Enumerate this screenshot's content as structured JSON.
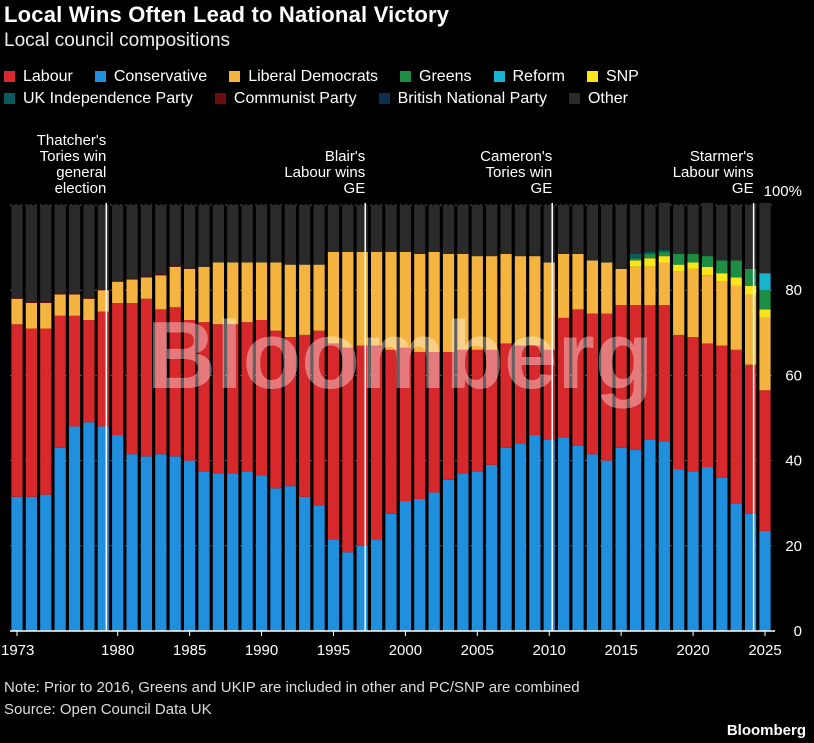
{
  "header": {
    "title": "Local Wins Often Lead to National Victory",
    "subtitle": "Local council compositions"
  },
  "footer": {
    "note": "Note: Prior to 2016, Greens and UKIP are included in other and PC/SNP are combined",
    "source": "Source: Open Council Data UK",
    "brand": "Bloomberg"
  },
  "watermark": "Bloomberg",
  "chart_data": {
    "type": "bar",
    "stacked": true,
    "xlim": [
      1973,
      2025
    ],
    "ylim": [
      0,
      100
    ],
    "y_ticks": [
      0,
      20,
      40,
      60,
      80,
      100
    ],
    "y_tick_labels": [
      "0",
      "20",
      "40",
      "60",
      "80",
      "100%"
    ],
    "x_ticks": [
      1973,
      1980,
      1985,
      1990,
      1995,
      2000,
      2005,
      2010,
      2015,
      2020,
      2025
    ],
    "x_tick_labels": [
      "1973",
      "1980",
      "1985",
      "1990",
      "1995",
      "2000",
      "2005",
      "2010",
      "2015",
      "2020",
      "2025"
    ],
    "grid": true,
    "legend_position": "top",
    "years": [
      1973,
      1974,
      1975,
      1976,
      1977,
      1978,
      1979,
      1980,
      1981,
      1982,
      1983,
      1984,
      1985,
      1986,
      1987,
      1988,
      1989,
      1990,
      1991,
      1992,
      1993,
      1994,
      1995,
      1996,
      1997,
      1998,
      1999,
      2000,
      2001,
      2002,
      2003,
      2004,
      2005,
      2006,
      2007,
      2008,
      2009,
      2010,
      2011,
      2012,
      2013,
      2014,
      2015,
      2016,
      2017,
      2018,
      2019,
      2020,
      2021,
      2022,
      2023,
      2024,
      2025
    ],
    "series": [
      {
        "name": "Conservative",
        "color": "#1f8fde",
        "values": [
          31.5,
          31.5,
          32,
          43,
          48,
          49,
          48,
          46,
          41.5,
          41,
          41.5,
          41,
          40,
          37.5,
          37,
          37,
          37.5,
          36.5,
          33.5,
          34,
          31.5,
          29.5,
          21.5,
          18.5,
          20,
          21.5,
          27.5,
          30.5,
          31,
          32.5,
          35.5,
          37,
          37.5,
          39,
          43,
          44,
          46,
          45,
          45.5,
          43.5,
          41.5,
          40,
          43,
          42.5,
          45,
          44.5,
          38,
          37.5,
          38.5,
          36,
          30,
          27.5,
          23.5
        ]
      },
      {
        "name": "Labour",
        "color": "#d7282b",
        "values": [
          40.5,
          39.5,
          39,
          31,
          26,
          24,
          27,
          31,
          35.5,
          37,
          34,
          35,
          33,
          35,
          35,
          35,
          35,
          36.5,
          37,
          35,
          38,
          41,
          46,
          48,
          47,
          45.5,
          38.5,
          36,
          34.5,
          33,
          30,
          29,
          28.5,
          27,
          24.5,
          23,
          21,
          21,
          28,
          32,
          33,
          34.5,
          33.5,
          34,
          31.5,
          32,
          31.5,
          31.5,
          29,
          31,
          36,
          35,
          33
        ]
      },
      {
        "name": "Liberal Democrats",
        "color": "#f5b43f",
        "values": [
          6,
          6,
          6,
          5,
          5,
          5,
          5,
          5,
          5.5,
          5,
          8,
          9.5,
          12,
          13,
          14.5,
          14.5,
          14,
          13.5,
          16,
          17,
          16.5,
          15.5,
          21.5,
          22.5,
          22,
          22,
          23,
          22.5,
          23,
          23.5,
          23,
          22.5,
          22,
          22,
          21,
          21,
          21,
          20.5,
          15,
          13,
          12.5,
          12,
          8.5,
          9,
          9,
          10,
          15,
          16,
          16,
          15,
          15,
          16.5,
          17
        ]
      },
      {
        "name": "SNP",
        "color": "#fde51b",
        "values": [
          0,
          0,
          0,
          0,
          0,
          0,
          0,
          0,
          0,
          0,
          0,
          0,
          0,
          0,
          0,
          0,
          0,
          0,
          0,
          0,
          0,
          0,
          0,
          0,
          0,
          0,
          0,
          0,
          0,
          0,
          0,
          0,
          0,
          0,
          0,
          0,
          0,
          0,
          0,
          0,
          0,
          0,
          0,
          1.5,
          2,
          1.5,
          1.5,
          1.5,
          2,
          2,
          2,
          2,
          2
        ]
      },
      {
        "name": "Greens",
        "color": "#1e8e45",
        "values": [
          0,
          0,
          0,
          0,
          0,
          0,
          0,
          0,
          0,
          0,
          0,
          0,
          0,
          0,
          0,
          0,
          0,
          0,
          0,
          0,
          0,
          0,
          0,
          0,
          0,
          0,
          0,
          0,
          0,
          0,
          0,
          0,
          0,
          0,
          0,
          0,
          0,
          0,
          0,
          0,
          0,
          0,
          0,
          0.5,
          1,
          1,
          2.5,
          2,
          2.5,
          3,
          4,
          4,
          4.5
        ]
      },
      {
        "name": "Reform",
        "color": "#17b4cf",
        "values": [
          0,
          0,
          0,
          0,
          0,
          0,
          0,
          0,
          0,
          0,
          0,
          0,
          0,
          0,
          0,
          0,
          0,
          0,
          0,
          0,
          0,
          0,
          0,
          0,
          0,
          0,
          0,
          0,
          0,
          0,
          0,
          0,
          0,
          0,
          0,
          0,
          0,
          0,
          0,
          0,
          0,
          0,
          0,
          0,
          0,
          0,
          0,
          0,
          0,
          0,
          0,
          0,
          4
        ]
      },
      {
        "name": "UK Independence Party",
        "color": "#0b5a5f",
        "values": [
          0,
          0,
          0,
          0,
          0,
          0,
          0,
          0,
          0,
          0,
          0,
          0,
          0,
          0,
          0,
          0,
          0,
          0,
          0,
          0,
          0,
          0,
          0,
          0,
          0,
          0,
          0,
          0,
          0,
          0,
          0,
          0,
          0,
          0,
          0,
          0,
          0,
          0,
          0,
          0,
          0,
          0,
          0,
          1,
          0.5,
          0.5,
          0,
          0,
          0,
          0,
          0,
          0,
          0
        ]
      },
      {
        "name": "Communist Party",
        "color": "#6b0d0d",
        "values": [
          0.3,
          0.3,
          0.3,
          0.3,
          0.3,
          0.3,
          0.2,
          0.2,
          0.2,
          0.2,
          0.2,
          0.2,
          0.1,
          0,
          0,
          0,
          0,
          0,
          0,
          0,
          0,
          0,
          0,
          0,
          0,
          0,
          0,
          0,
          0,
          0,
          0,
          0,
          0,
          0,
          0,
          0,
          0,
          0,
          0,
          0,
          0,
          0,
          0,
          0,
          0,
          0,
          0,
          0,
          0,
          0,
          0,
          0,
          0
        ]
      },
      {
        "name": "British National Party",
        "color": "#0e2e4f",
        "values": [
          0,
          0,
          0,
          0,
          0,
          0,
          0,
          0,
          0,
          0,
          0,
          0,
          0,
          0,
          0,
          0,
          0,
          0,
          0,
          0,
          0,
          0,
          0,
          0,
          0,
          0,
          0,
          0,
          0,
          0,
          0,
          0,
          0,
          0,
          0,
          0,
          0.2,
          0.2,
          0.2,
          0.2,
          0.1,
          0.1,
          0,
          0,
          0,
          0,
          0,
          0,
          0,
          0,
          0,
          0,
          0
        ]
      },
      {
        "name": "Other",
        "color": "#2a2a2a",
        "values": [
          21.7,
          22.7,
          22.7,
          20.7,
          20.7,
          21.7,
          19.8,
          17.8,
          17.3,
          16.8,
          16.3,
          14.3,
          14.9,
          14.5,
          13.5,
          13.5,
          13.5,
          13.5,
          13.5,
          14,
          14,
          14,
          11,
          11,
          11,
          11,
          11,
          11,
          11.5,
          11,
          11.5,
          11.5,
          12,
          12,
          11.5,
          12,
          11.8,
          13.3,
          11.3,
          11.3,
          12.9,
          13.4,
          15,
          11.5,
          11,
          11,
          11.5,
          11.5,
          12.5,
          13,
          13,
          15,
          16.5
        ]
      }
    ],
    "annotations": [
      {
        "year": 1979,
        "text": [
          "Thatcher's",
          "Tories win",
          "general",
          "election"
        ]
      },
      {
        "year": 1997,
        "text": [
          "Blair's",
          "Labour wins",
          "GE"
        ]
      },
      {
        "year": 2010,
        "text": [
          "Cameron's",
          "Tories win",
          "GE"
        ]
      },
      {
        "year": 2024,
        "text": [
          "Starmer's",
          "Labour wins",
          "GE"
        ]
      }
    ]
  },
  "legend_order": [
    "Labour",
    "Conservative",
    "Liberal Democrats",
    "Greens",
    "Reform",
    "SNP",
    "UK Independence Party",
    "Communist Party",
    "British National Party",
    "Other"
  ]
}
